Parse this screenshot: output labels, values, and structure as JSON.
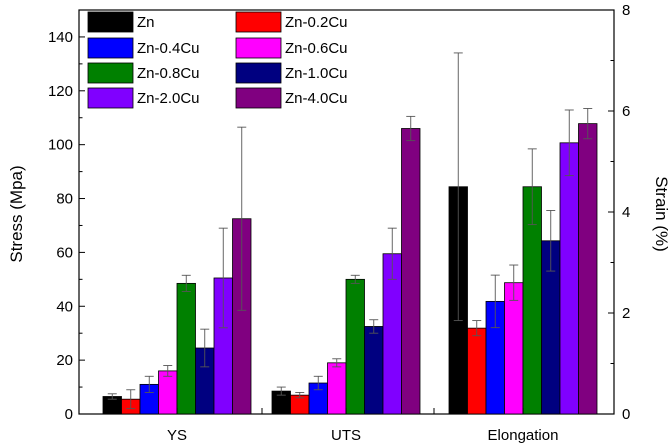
{
  "chart_data": {
    "type": "bar",
    "categories": [
      "YS",
      "UTS",
      "Elongation"
    ],
    "ylabel": "Stress (Mpa)",
    "y2label": "Strain (%)",
    "ylim": [
      0,
      150
    ],
    "y2lim": [
      0,
      8
    ],
    "yticks": [
      0,
      20,
      40,
      60,
      80,
      100,
      120,
      140
    ],
    "y2ticks": [
      0,
      2,
      4,
      6,
      8
    ],
    "legend_position": "top-left",
    "series": [
      {
        "name": "Zn",
        "color": "#000000",
        "values": [
          6.5,
          8.5,
          4.5
        ],
        "errors": [
          1.0,
          1.5,
          2.65
        ]
      },
      {
        "name": "Zn-0.2Cu",
        "color": "#ff0000",
        "values": [
          5.5,
          7.0,
          1.7
        ],
        "errors": [
          3.5,
          1.0,
          0.15
        ]
      },
      {
        "name": "Zn-0.4Cu",
        "color": "#0000ff",
        "values": [
          11.0,
          11.5,
          2.23
        ],
        "errors": [
          3.0,
          2.5,
          0.52
        ]
      },
      {
        "name": "Zn-0.6Cu",
        "color": "#ff00ff",
        "values": [
          16.0,
          19.0,
          2.6
        ],
        "errors": [
          2.0,
          1.5,
          0.35
        ]
      },
      {
        "name": "Zn-0.8Cu",
        "color": "#008000",
        "values": [
          48.5,
          50.0,
          4.5
        ],
        "errors": [
          3.0,
          1.5,
          0.75
        ]
      },
      {
        "name": "Zn-1.0Cu",
        "color": "#000080",
        "values": [
          24.5,
          32.5,
          3.43
        ],
        "errors": [
          7.0,
          2.5,
          0.6
        ]
      },
      {
        "name": "Zn-2.0Cu",
        "color": "#8000ff",
        "values": [
          50.5,
          59.5,
          5.37
        ],
        "errors": [
          18.5,
          9.5,
          0.65
        ]
      },
      {
        "name": "Zn-4.0Cu",
        "color": "#800080",
        "values": [
          72.5,
          106.0,
          5.75
        ],
        "errors": [
          34.0,
          4.5,
          0.3
        ]
      }
    ],
    "axis_mapping": [
      "left",
      "left",
      "right"
    ]
  }
}
